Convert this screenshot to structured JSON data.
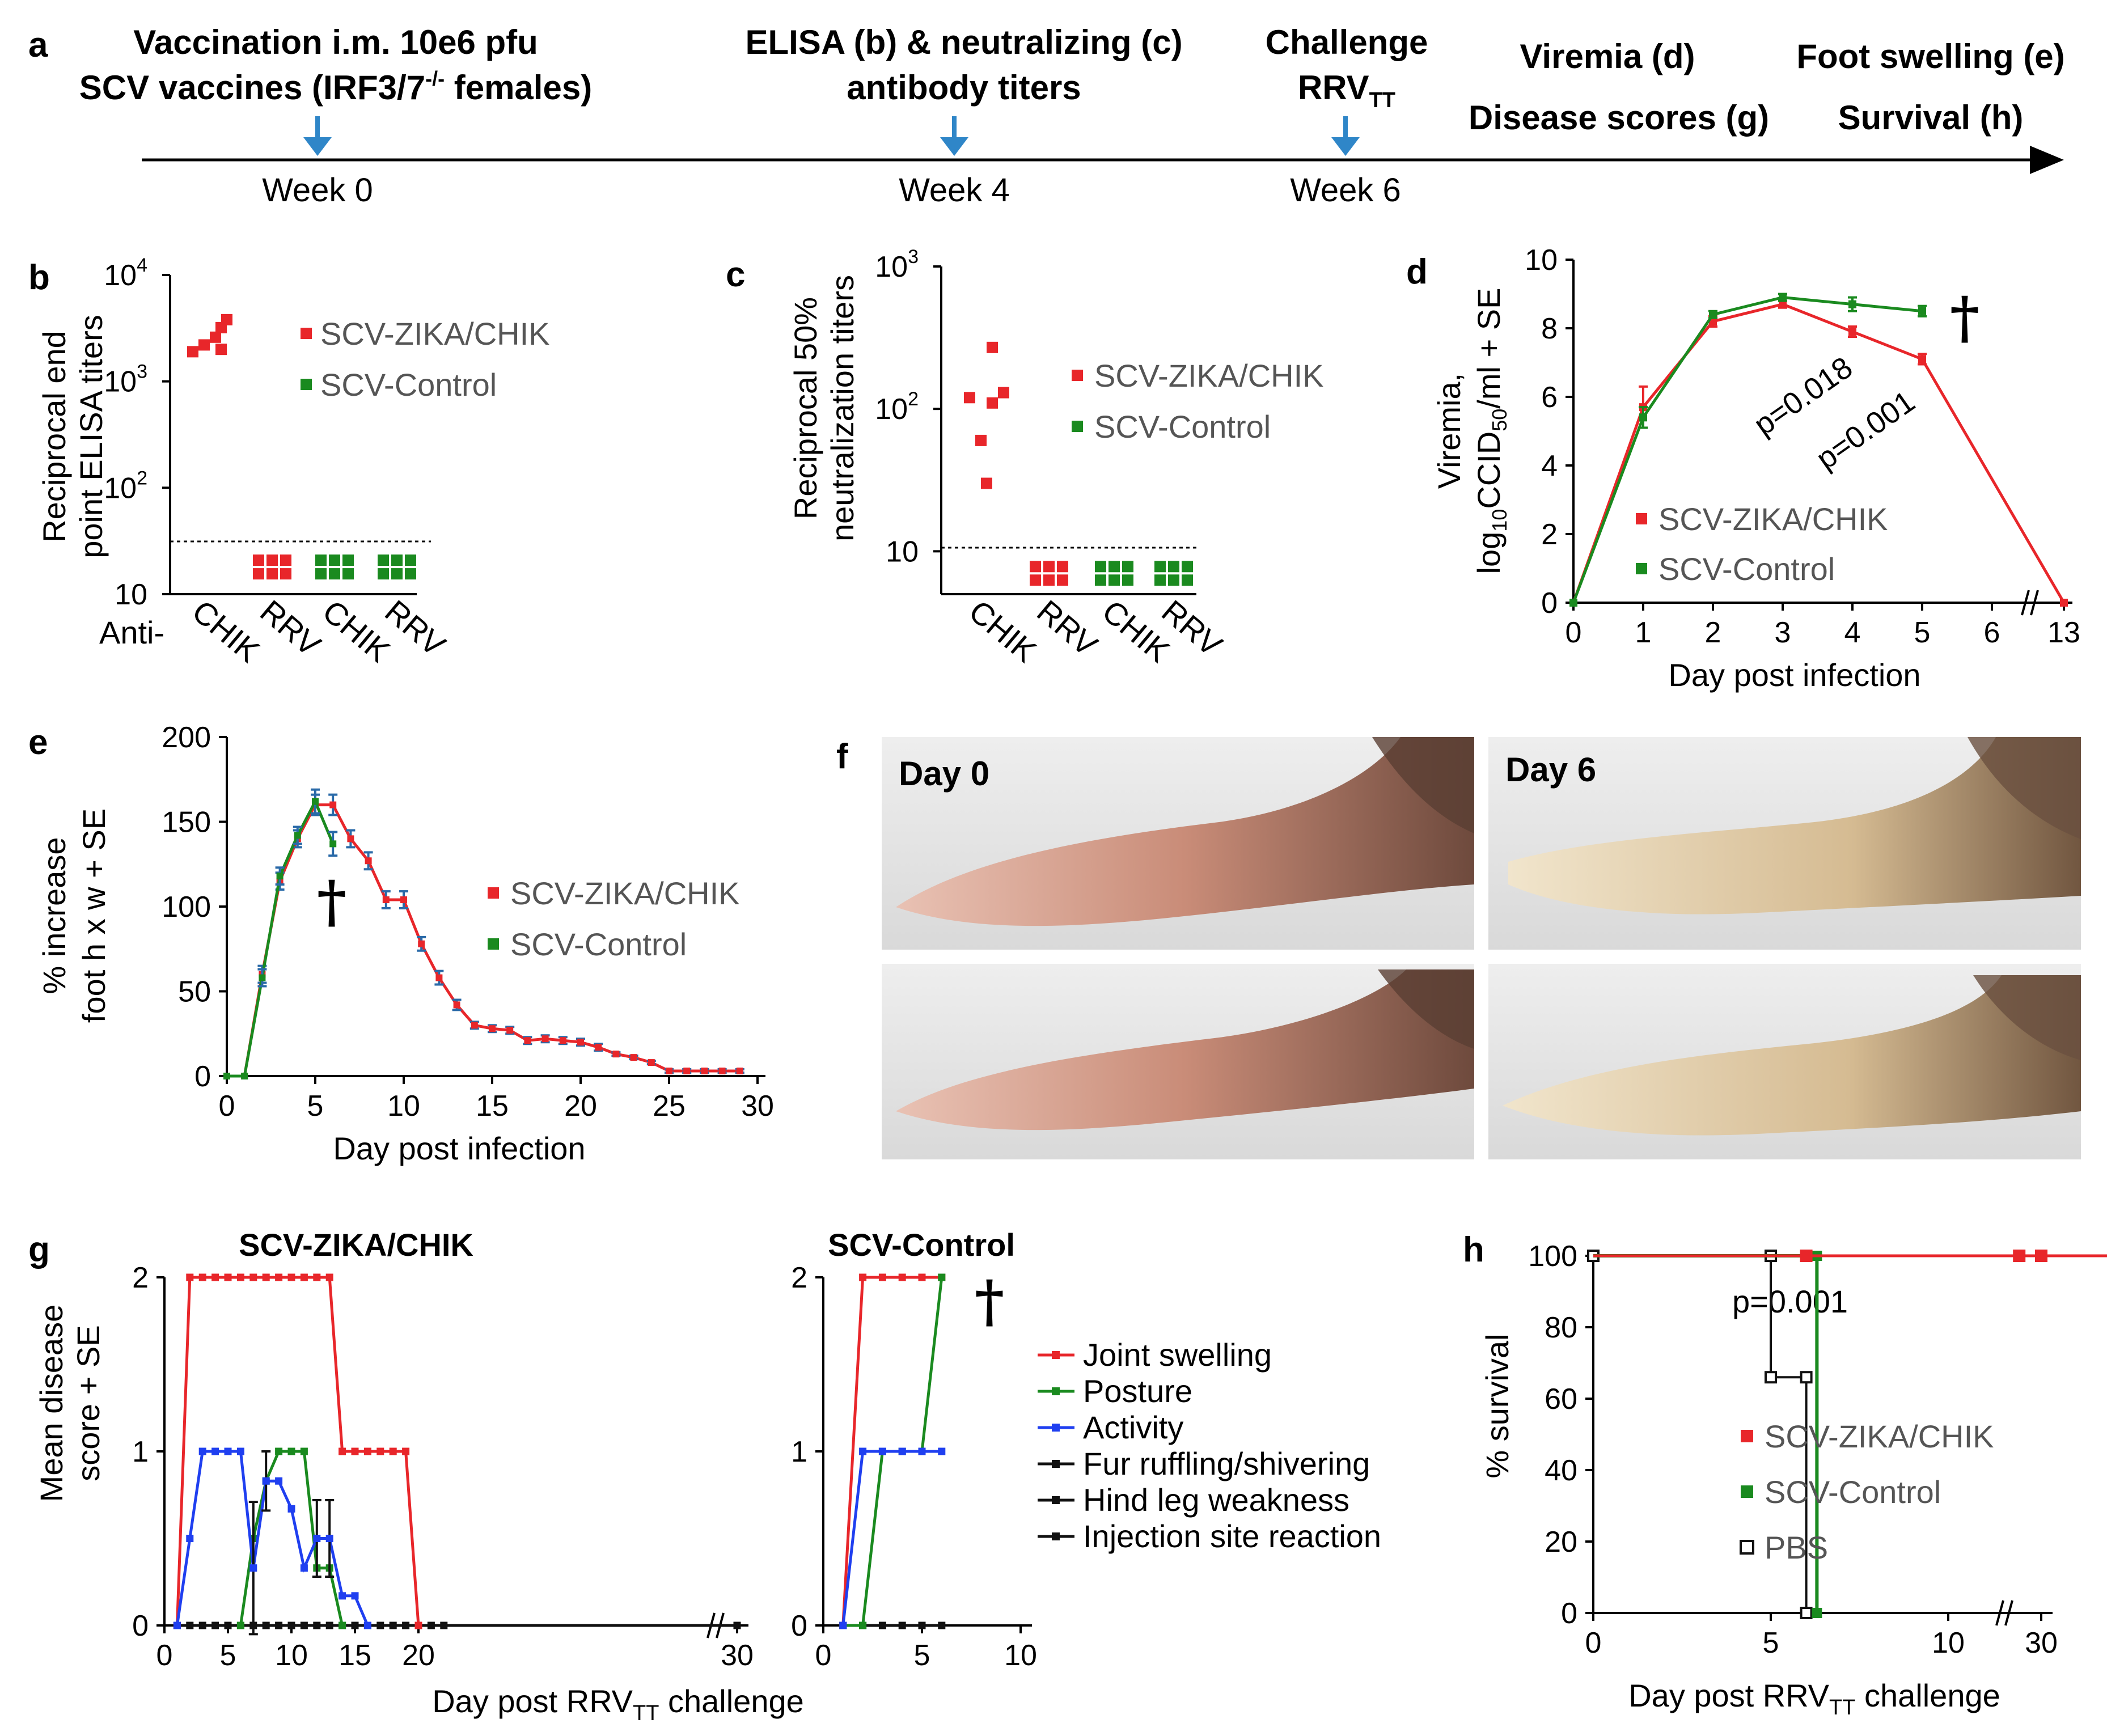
{
  "colors": {
    "vaccine": "#e8262a",
    "control": "#1a8a1f",
    "activity": "#1f3ff0",
    "black": "#111111",
    "arrow": "#2f86c8",
    "errorbar": "#2a6aa8"
  },
  "dagger": "†",
  "timeline": {
    "panel": "a",
    "vaccination_line1": "Vaccination i.m. 10e6 pfu",
    "vaccination_line2_pre": "SCV vaccines (IRF3/7",
    "vaccination_line2_sup": "-/-",
    "vaccination_line2_post": " females)",
    "elisa_line1": "ELISA (b) & neutralizing (c)",
    "elisa_line2": "antibody titers",
    "challenge_line1": "Challenge",
    "challenge_line2": "RRV",
    "challenge_line2_sub": "TT",
    "viremia": "Viremia (d)",
    "foot_swelling": "Foot swelling (e)",
    "disease_scores": "Disease scores (g)",
    "survival": "Survival (h)",
    "weeks": [
      "Week 0",
      "Week 4",
      "Week 6"
    ]
  },
  "panel_b": {
    "label": "b",
    "ylabel_line1": "Reciprocal end",
    "ylabel_line2": "point ELISA titers",
    "anti_label": "Anti-",
    "ticks": [
      "10",
      "10",
      "10",
      "10"
    ],
    "tick_exps": [
      "",
      "2",
      "3",
      "4"
    ],
    "legend": [
      "SCV-ZIKA/CHIK",
      "SCV-Control"
    ]
  },
  "panel_c": {
    "label": "c",
    "ylabel_line1": "Reciprocal 50%",
    "ylabel_line2": "neutralization titers",
    "ticks": [
      "10",
      "10",
      "10"
    ],
    "tick_exps": [
      "",
      "2",
      "3"
    ],
    "legend": [
      "SCV-ZIKA/CHIK",
      "SCV-Control"
    ]
  },
  "panel_d": {
    "label": "d",
    "ylabel_line1": "Viremia,",
    "ylabel_line2_pre": "log",
    "ylabel_line2_sub1": "10",
    "ylabel_line2_mid": "CCID",
    "ylabel_line2_sub2": "50",
    "ylabel_line2_post": "/ml + SE",
    "xlabel": "Day post infection",
    "p1": "p=0.018",
    "p2": "p=0.001",
    "legend": [
      "SCV-ZIKA/CHIK",
      "SCV-Control"
    ]
  },
  "panel_e": {
    "label": "e",
    "ylabel_line1": "% increase",
    "ylabel_line2": "foot h x w + SE",
    "xlabel": "Day post infection",
    "legend": [
      "SCV-ZIKA/CHIK",
      "SCV-Control"
    ]
  },
  "panel_f": {
    "label": "f",
    "day0": "Day 0",
    "day6": "Day 6"
  },
  "panel_g": {
    "label": "g",
    "title_left": "SCV-ZIKA/CHIK",
    "title_right": "SCV-Control",
    "ylabel_line1": "Mean disease",
    "ylabel_line2": "score + SE",
    "xlabel_pre": "Day post RRV",
    "xlabel_sub": "TT",
    "xlabel_post": " challenge",
    "legend": [
      "Joint swelling",
      "Posture",
      "Activity",
      "Fur ruffling/shivering",
      "Hind leg weakness",
      "Injection site reaction"
    ]
  },
  "panel_h": {
    "label": "h",
    "ylabel": "% survival",
    "xlabel_pre": "Day post RRV",
    "xlabel_sub": "TT",
    "xlabel_post": " challenge",
    "p": "p=0.001",
    "legend": [
      "SCV-ZIKA/CHIK",
      "SCV-Control",
      "PBS"
    ]
  },
  "chart_data": [
    {
      "id": "b",
      "type": "scatter",
      "yscale": "log",
      "ylim": [
        10,
        10000
      ],
      "categories": [
        "CHIK",
        "RRV",
        "CHIK",
        "RRV"
      ],
      "detection_limit": 32,
      "series": [
        {
          "name": "SCV-ZIKA/CHIK",
          "values": [
            [
              1900,
              2200,
              2600,
              3200,
              3800,
              2000
            ],
            [
              18,
              18,
              18,
              18,
              18,
              18
            ]
          ]
        },
        {
          "name": "SCV-Control",
          "values": [
            [
              18,
              18,
              18,
              18,
              18,
              18
            ],
            [
              18,
              18,
              18,
              18,
              18,
              18
            ]
          ]
        }
      ]
    },
    {
      "id": "c",
      "type": "scatter",
      "yscale": "log",
      "ylim": [
        5,
        1000
      ],
      "categories": [
        "CHIK",
        "RRV",
        "CHIK",
        "RRV"
      ],
      "detection_limit": 10,
      "series": [
        {
          "name": "SCV-ZIKA/CHIK",
          "values": [
            [
              270,
              120,
              110,
              130,
              60,
              30
            ],
            [
              7,
              7,
              7,
              7,
              7,
              7
            ]
          ]
        },
        {
          "name": "SCV-Control",
          "values": [
            [
              7,
              7,
              7,
              7,
              7,
              7
            ],
            [
              7,
              7,
              7,
              7,
              7,
              7
            ]
          ]
        }
      ]
    },
    {
      "id": "d",
      "type": "line",
      "xlabel": "Day post infection",
      "xticks": [
        0,
        1,
        2,
        3,
        4,
        5,
        6,
        13
      ],
      "ylim": [
        0,
        10
      ],
      "series": [
        {
          "name": "SCV-ZIKA/CHIK",
          "x": [
            0,
            1,
            2,
            3,
            4,
            5,
            13
          ],
          "y": [
            0,
            5.7,
            8.2,
            8.7,
            7.9,
            7.1,
            0
          ],
          "err": [
            0,
            0.6,
            0.15,
            0.1,
            0.15,
            0.15,
            0
          ]
        },
        {
          "name": "SCV-Control",
          "x": [
            0,
            1,
            2,
            3,
            4,
            5
          ],
          "y": [
            0,
            5.4,
            8.4,
            8.9,
            8.7,
            8.5
          ],
          "err": [
            0,
            0.3,
            0.1,
            0.1,
            0.2,
            0.15
          ]
        }
      ]
    },
    {
      "id": "e",
      "type": "line",
      "xlabel": "Day post infection",
      "xlim": [
        0,
        30
      ],
      "ylim": [
        0,
        200
      ],
      "series": [
        {
          "name": "SCV-ZIKA/CHIK",
          "x": [
            0,
            1,
            2,
            3,
            4,
            5,
            6,
            7,
            8,
            9,
            10,
            11,
            12,
            13,
            14,
            15,
            16,
            17,
            18,
            19,
            20,
            21,
            22,
            23,
            24,
            25,
            26,
            27,
            28,
            29
          ],
          "y": [
            0,
            0,
            60,
            115,
            140,
            160,
            160,
            140,
            127,
            104,
            104,
            78,
            58,
            42,
            30,
            28,
            27,
            21,
            22,
            21,
            20,
            17,
            13,
            11,
            8,
            3,
            3,
            3,
            3,
            3
          ],
          "err": [
            0,
            0,
            5,
            5,
            5,
            6,
            6,
            5,
            5,
            5,
            5,
            4,
            4,
            3,
            2,
            2,
            2,
            2,
            2,
            2,
            2,
            2,
            1,
            1,
            1,
            1,
            1,
            1,
            1,
            1
          ]
        },
        {
          "name": "SCV-Control",
          "x": [
            0,
            1,
            2,
            3,
            4,
            5,
            6
          ],
          "y": [
            0,
            0,
            58,
            118,
            142,
            162,
            137
          ],
          "err": [
            0,
            0,
            5,
            5,
            5,
            7,
            7
          ]
        }
      ]
    },
    {
      "id": "g_left",
      "type": "line",
      "title": "SCV-ZIKA/CHIK",
      "xlim": [
        0,
        30
      ],
      "ylim": [
        0,
        2
      ],
      "series": [
        {
          "name": "Joint swelling",
          "x": [
            1,
            2,
            3,
            4,
            5,
            6,
            7,
            8,
            9,
            10,
            11,
            12,
            13,
            14,
            15,
            16,
            17,
            18,
            19,
            20
          ],
          "y": [
            0,
            2,
            2,
            2,
            2,
            2,
            2,
            2,
            2,
            2,
            2,
            2,
            2,
            1,
            1,
            1,
            1,
            1,
            1,
            0
          ]
        },
        {
          "name": "Posture",
          "x": [
            6,
            7,
            8,
            9,
            10,
            11,
            12,
            13,
            14
          ],
          "y": [
            0,
            0.5,
            0.83,
            1,
            1,
            1,
            0.33,
            0.33,
            0
          ]
        },
        {
          "name": "Activity",
          "x": [
            1,
            2,
            3,
            4,
            5,
            6,
            7,
            8,
            9,
            10,
            11,
            12,
            13,
            14,
            15,
            16
          ],
          "y": [
            0,
            0.5,
            1,
            1,
            1,
            1,
            0.33,
            0.83,
            0.83,
            0.67,
            0.33,
            0.5,
            0.5,
            0.17,
            0.17,
            0
          ],
          "err": [
            0,
            0,
            0,
            0,
            0,
            0,
            0.38,
            0.17,
            0,
            0,
            0,
            0.22,
            0.22,
            0,
            0,
            0
          ]
        },
        {
          "name": "Fur ruffling/shivering",
          "x": [
            1,
            2,
            3,
            4,
            5,
            6,
            7,
            8,
            9,
            10,
            11,
            12,
            13,
            14,
            15,
            16,
            17,
            18,
            19,
            20,
            21,
            22,
            30
          ],
          "y": [
            0,
            0,
            0,
            0,
            0,
            0,
            0,
            0,
            0,
            0,
            0,
            0,
            0,
            0,
            0,
            0,
            0,
            0,
            0,
            0,
            0,
            0,
            0
          ]
        }
      ]
    },
    {
      "id": "g_right",
      "type": "line",
      "title": "SCV-Control",
      "xlim": [
        0,
        10
      ],
      "ylim": [
        0,
        2
      ],
      "series": [
        {
          "name": "Joint swelling",
          "x": [
            1,
            2,
            3,
            4,
            5,
            6
          ],
          "y": [
            0,
            2,
            2,
            2,
            2,
            2
          ]
        },
        {
          "name": "Posture",
          "x": [
            1,
            2,
            3,
            4,
            5,
            6
          ],
          "y": [
            0,
            0,
            1,
            1,
            1,
            2
          ]
        },
        {
          "name": "Activity",
          "x": [
            1,
            2,
            3,
            4,
            5,
            6
          ],
          "y": [
            0,
            1,
            1,
            1,
            1,
            1
          ]
        },
        {
          "name": "Fur ruffling/shivering",
          "x": [
            1,
            2,
            3,
            4,
            5,
            6
          ],
          "y": [
            0,
            0,
            0,
            0,
            0,
            0
          ]
        }
      ]
    },
    {
      "id": "h",
      "type": "line",
      "ylabel": "% survival",
      "xlim": [
        0,
        30
      ],
      "ylim": [
        0,
        100
      ],
      "series": [
        {
          "name": "SCV-ZIKA/CHIK",
          "x": [
            0,
            6,
            12,
            17,
            22,
            30
          ],
          "y": [
            100,
            100,
            100,
            100,
            100,
            100
          ]
        },
        {
          "name": "SCV-Control",
          "x": [
            0,
            6.3,
            6.3
          ],
          "y": [
            100,
            100,
            0
          ]
        },
        {
          "name": "PBS",
          "x": [
            0,
            5,
            5,
            6,
            6
          ],
          "y": [
            100,
            100,
            66,
            66,
            0
          ]
        }
      ]
    }
  ]
}
